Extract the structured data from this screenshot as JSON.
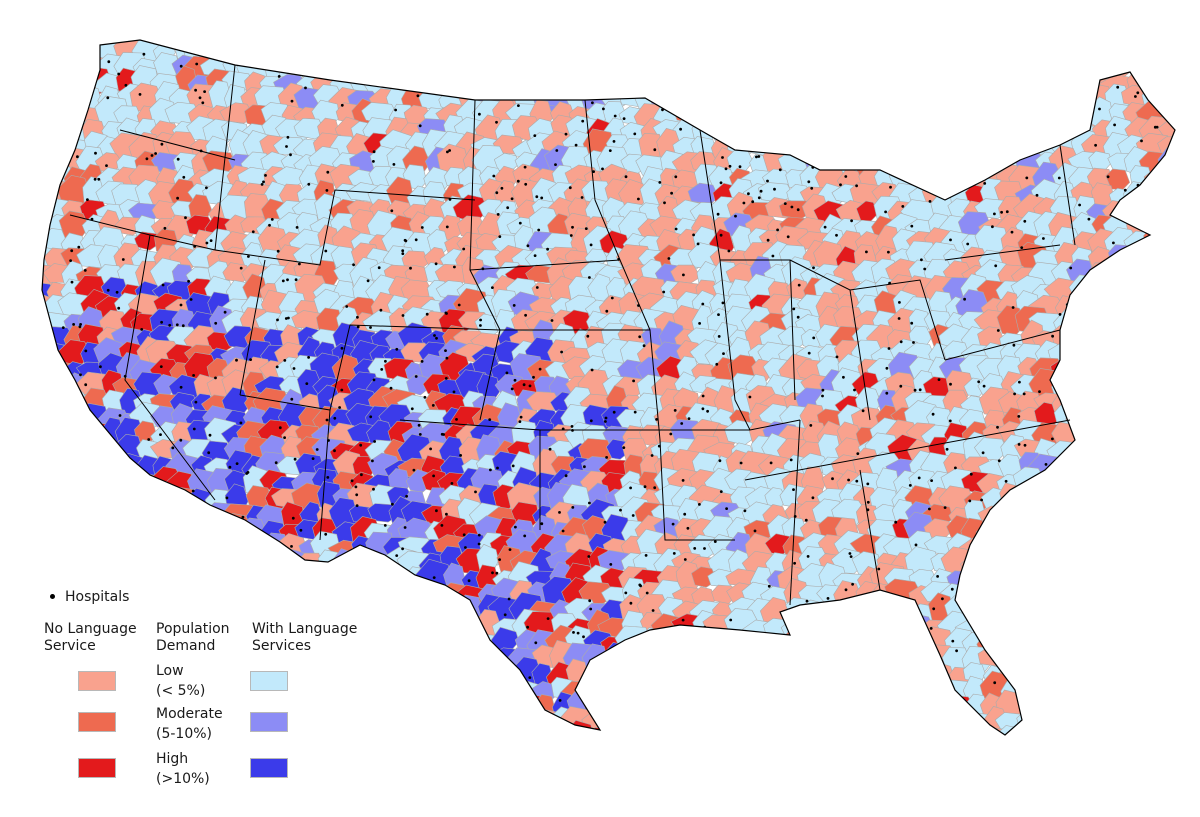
{
  "colors": {
    "no_low": "#f9a28e",
    "no_moderate": "#ee6a50",
    "no_high": "#e31a1c",
    "with_low": "#c2e9fb",
    "with_moderate": "#8c8cf5",
    "with_high": "#3b3bea",
    "boundary": "#000000",
    "cell_border": "#ababab",
    "hospital": "#000000"
  },
  "legend": {
    "hospitals": "Hospitals",
    "no_service_header": [
      "No Language",
      "Service"
    ],
    "demand_header": [
      "Population",
      "Demand"
    ],
    "with_service_header": [
      "With Language",
      "Services"
    ],
    "levels": [
      {
        "name": "Low",
        "range": "(< 5%)"
      },
      {
        "name": "Moderate",
        "range": "(5-10%)"
      },
      {
        "name": "High",
        "range": "(>10%)"
      }
    ]
  }
}
